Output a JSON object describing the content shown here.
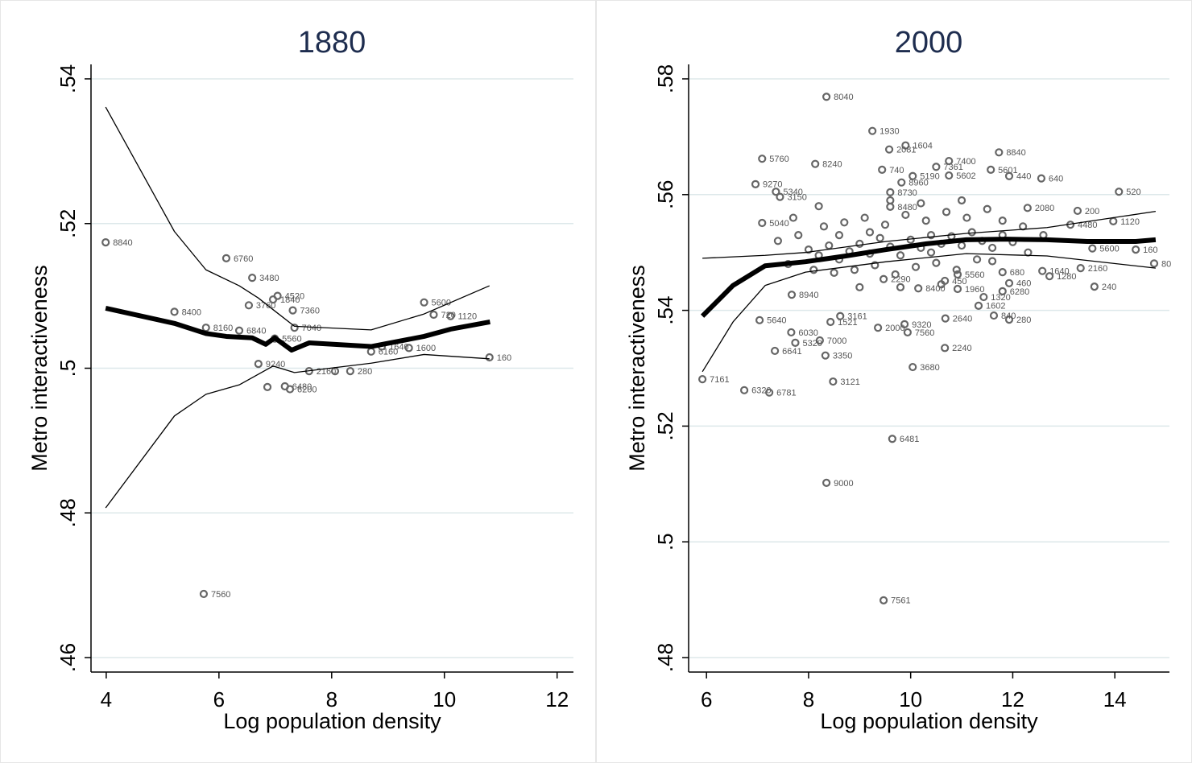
{
  "chart_data": [
    {
      "type": "scatter",
      "title": "1880",
      "x_label": "Log population density",
      "y_label": "Metro interactiveness",
      "xlim": [
        3.73,
        12.29
      ],
      "ylim": [
        0.458,
        0.542
      ],
      "xticks": [
        4,
        6,
        8,
        10,
        12
      ],
      "yticks": [
        {
          "value": 0.46,
          "label": ".46"
        },
        {
          "value": 0.48,
          "label": ".48"
        },
        {
          "value": 0.5,
          "label": ".5"
        },
        {
          "value": 0.52,
          "label": ".52"
        },
        {
          "value": 0.54,
          "label": ".54"
        }
      ],
      "grid": true,
      "point_color": "#666666",
      "line_color": "#000000",
      "points": {
        "x": [
          3.99,
          5.21,
          6.13,
          6.59,
          6.53,
          5.77,
          6.36,
          7.04,
          6.96,
          7.31,
          7.34,
          6.99,
          6.7,
          7.17,
          7.26,
          7.6,
          8.33,
          8.7,
          8.89,
          9.37,
          9.64,
          9.81,
          10.11,
          10.8,
          5.73,
          6.86,
          8.06
        ],
        "y": [
          0.5174,
          0.5078,
          0.5152,
          0.5125,
          0.5087,
          0.5056,
          0.5052,
          0.51,
          0.5095,
          0.508,
          0.5056,
          0.5041,
          0.5006,
          0.4975,
          0.4971,
          0.4996,
          0.4996,
          0.5023,
          0.503,
          0.5028,
          0.5091,
          0.5074,
          0.5072,
          0.5015,
          0.4688,
          0.4974,
          0.4996
        ],
        "labels": [
          "8840",
          "8400",
          "6760",
          "3480",
          "3760",
          "8160",
          "6840",
          "4520",
          "1840",
          "7360",
          "7040",
          "5560",
          "9240",
          "6480",
          "6200",
          "2160",
          "280",
          "6160",
          "1640",
          "1600",
          "5600",
          "720",
          "1120",
          "160",
          "7560",
          null,
          null
        ]
      },
      "fit": {
        "x": [
          3.99,
          5.21,
          5.77,
          6.13,
          6.59,
          6.83,
          6.99,
          7.29,
          7.6,
          8.7,
          9.64,
          10.11,
          10.81
        ],
        "y": [
          0.5083,
          0.5062,
          0.5048,
          0.5044,
          0.5042,
          0.5033,
          0.5042,
          0.5025,
          0.5035,
          0.503,
          0.5044,
          0.5054,
          0.5064
        ]
      },
      "ci_upper": {
        "x": [
          3.99,
          5.21,
          5.77,
          6.36,
          6.7,
          6.96,
          7.34,
          8.7,
          9.64,
          10.8
        ],
        "y": [
          0.5361,
          0.5189,
          0.5136,
          0.5114,
          0.5097,
          0.5081,
          0.5058,
          0.5053,
          0.5075,
          0.5114
        ]
      },
      "ci_lower": {
        "x": [
          3.99,
          5.21,
          5.77,
          6.36,
          6.96,
          7.34,
          8.7,
          9.64,
          10.8
        ],
        "y": [
          0.4807,
          0.4934,
          0.4964,
          0.4977,
          0.5003,
          0.4994,
          0.5007,
          0.5019,
          0.5013
        ]
      }
    },
    {
      "type": "scatter",
      "title": "2000",
      "x_label": "Log population density",
      "y_label": "Metro interactiveness",
      "xlim": [
        5.65,
        15.07
      ],
      "ylim": [
        0.4775,
        0.5825
      ],
      "xticks": [
        6,
        8,
        10,
        12,
        14
      ],
      "yticks": [
        {
          "value": 0.48,
          "label": ".48"
        },
        {
          "value": 0.5,
          "label": ".5"
        },
        {
          "value": 0.52,
          "label": ".52"
        },
        {
          "value": 0.54,
          "label": ".54"
        },
        {
          "value": 0.56,
          "label": ".56"
        },
        {
          "value": 0.58,
          "label": ".58"
        }
      ],
      "grid": true,
      "point_color": "#666666",
      "line_color": "#000000",
      "points": {
        "x": [
          8.35,
          9.25,
          9.9,
          11.73,
          7.09,
          8.13,
          10.75,
          11.57,
          11.93,
          12.56,
          10.75,
          6.96,
          10.04,
          14.08,
          7.36,
          7.44,
          12.29,
          13.27,
          13.97,
          13.13,
          7.09,
          14.41,
          14.77,
          13.56,
          13.33,
          12.58,
          12.72,
          13.6,
          11.93,
          11.8,
          11.43,
          11.33,
          11.93,
          11.63,
          10.92,
          10.67,
          10.92,
          11.8,
          10.68,
          10.67,
          10.04,
          9.88,
          9.94,
          9.36,
          8.48,
          8.33,
          8.22,
          7.74,
          7.66,
          7.04,
          7.34,
          5.92,
          6.74,
          7.23,
          9.64,
          8.35,
          9.47,
          8.43,
          8.62,
          7.67,
          9.47,
          9.6,
          9.82,
          10.5,
          9.58,
          9.6,
          9.44,
          10.15,
          8.0,
          8.2,
          8.4,
          8.6,
          8.8,
          9.0,
          9.2,
          9.4,
          9.6,
          9.8,
          10.0,
          10.2,
          10.4,
          10.6,
          10.8,
          11.0,
          11.2,
          11.4,
          11.6,
          11.8,
          12.0,
          8.3,
          8.7,
          9.1,
          9.5,
          9.9,
          10.3,
          10.7,
          11.1,
          11.5,
          8.5,
          8.9,
          9.3,
          9.7,
          10.1,
          10.5,
          10.9,
          11.3,
          7.8,
          7.6,
          7.4,
          12.3,
          12.6,
          9.0,
          9.8,
          10.6,
          8.2,
          9.6,
          10.2,
          11.0,
          11.8,
          12.2,
          7.7,
          8.1,
          10.4,
          9.2,
          8.6,
          11.6
        ],
        "y": [
          0.5769,
          0.571,
          0.5685,
          0.5673,
          0.5662,
          0.5653,
          0.5658,
          0.5643,
          0.5632,
          0.5628,
          0.5633,
          0.5618,
          0.5632,
          0.5605,
          0.5605,
          0.5596,
          0.5577,
          0.5572,
          0.5554,
          0.5548,
          0.5551,
          0.5505,
          0.5481,
          0.5507,
          0.5473,
          0.5468,
          0.5459,
          0.5441,
          0.5447,
          0.5433,
          0.5423,
          0.5408,
          0.5384,
          0.5391,
          0.5437,
          0.5451,
          0.5462,
          0.5466,
          0.5386,
          0.5335,
          0.5302,
          0.5376,
          0.5362,
          0.537,
          0.5277,
          0.5322,
          0.5348,
          0.5344,
          0.5362,
          0.5383,
          0.533,
          0.5281,
          0.5262,
          0.5258,
          0.5178,
          0.5102,
          0.4899,
          0.538,
          0.539,
          0.5427,
          0.5454,
          0.5604,
          0.5621,
          0.5648,
          0.5678,
          0.5579,
          0.5643,
          0.5438,
          0.5505,
          0.5495,
          0.5512,
          0.5488,
          0.5502,
          0.5515,
          0.5498,
          0.5525,
          0.551,
          0.5495,
          0.5522,
          0.5508,
          0.553,
          0.5515,
          0.5528,
          0.5512,
          0.5535,
          0.552,
          0.5508,
          0.553,
          0.5518,
          0.5545,
          0.5552,
          0.556,
          0.5548,
          0.5565,
          0.5555,
          0.557,
          0.556,
          0.5575,
          0.5465,
          0.547,
          0.5478,
          0.5462,
          0.5475,
          0.5482,
          0.547,
          0.5488,
          0.553,
          0.548,
          0.552,
          0.55,
          0.553,
          0.544,
          0.544,
          0.5445,
          0.558,
          0.559,
          0.5585,
          0.559,
          0.5555,
          0.5545,
          0.556,
          0.547,
          0.55,
          0.5535,
          0.553,
          0.5485
        ],
        "labels": [
          "8040",
          "1930",
          "1604",
          "8840",
          "5760",
          "8240",
          "7400",
          "5601",
          "440",
          "640",
          "5602",
          "9270",
          "5190",
          "520",
          "5340",
          "3150",
          "2080",
          "200",
          "1120",
          "4480",
          "5040",
          "160",
          "80",
          "5600",
          "2160",
          "1640",
          "1280",
          "240",
          "460",
          "6280",
          "1320",
          "1602",
          "280",
          "840",
          "1960",
          "450",
          "5560",
          "680",
          "2640",
          "2240",
          "3680",
          "9320",
          "7560",
          "2000",
          "3121",
          "3350",
          "7000",
          "5320",
          "6030",
          "5640",
          "6641",
          "7161",
          "6320",
          "6781",
          "6481",
          "9000",
          "7561",
          "1521",
          "3161",
          "8940",
          "2290",
          "8730",
          "8960",
          "7361",
          "2081",
          "8480",
          "740",
          "8400",
          null,
          null,
          null,
          null,
          null,
          null,
          null,
          null,
          null,
          null,
          null,
          null,
          null,
          null,
          null,
          null,
          null,
          null,
          null,
          null,
          null,
          null,
          null,
          null,
          null,
          null,
          null,
          null,
          null,
          null,
          null,
          null,
          null,
          null,
          null,
          null,
          null,
          null,
          null,
          null,
          null,
          null,
          null,
          null,
          null,
          null,
          null,
          null,
          null,
          null,
          null,
          null,
          null,
          null,
          null,
          null,
          null,
          null
        ]
      },
      "fit": {
        "x": [
          5.92,
          6.52,
          7.15,
          7.94,
          8.73,
          9.52,
          10.31,
          11.09,
          11.88,
          12.67,
          13.46,
          14.41,
          14.8
        ],
        "y": [
          0.539,
          0.5443,
          0.5477,
          0.5484,
          0.5494,
          0.5505,
          0.5515,
          0.5522,
          0.5523,
          0.5522,
          0.5519,
          0.5519,
          0.5522
        ]
      },
      "ci_upper": {
        "x": [
          5.92,
          7.15,
          7.94,
          9.52,
          11.09,
          12.67,
          14.8
        ],
        "y": [
          0.549,
          0.5495,
          0.55,
          0.5519,
          0.5533,
          0.5543,
          0.5571
        ]
      },
      "ci_lower": {
        "x": [
          5.92,
          6.52,
          7.15,
          7.94,
          9.52,
          11.09,
          12.67,
          14.8
        ],
        "y": [
          0.5294,
          0.538,
          0.5443,
          0.5466,
          0.5484,
          0.5498,
          0.5494,
          0.5473
        ]
      }
    }
  ]
}
